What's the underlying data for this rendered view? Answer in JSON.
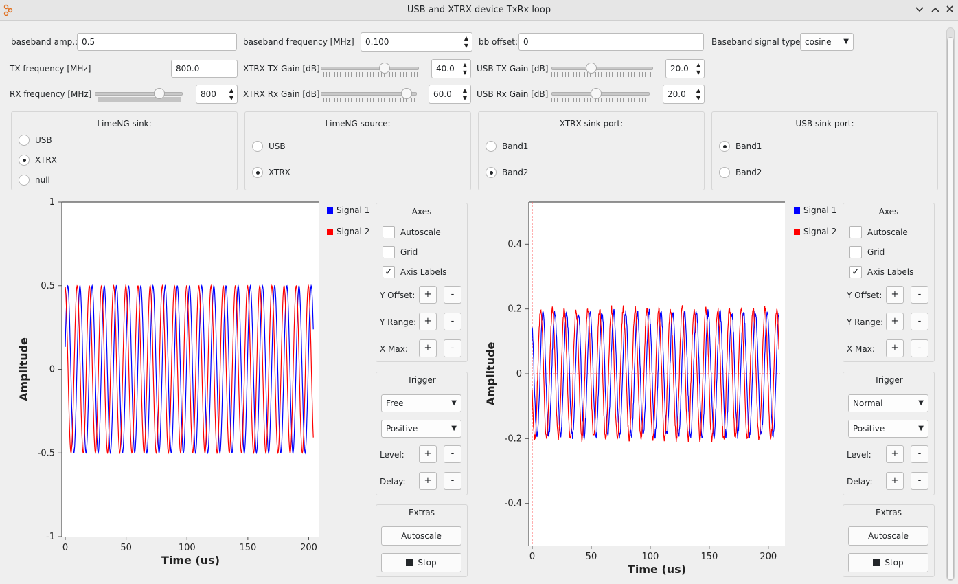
{
  "window": {
    "title": "USB and XTRX device TxRx loop",
    "minimize_icon": "chevron-down-icon",
    "maximize_icon": "chevron-up-icon",
    "close_icon": "close-icon"
  },
  "params": {
    "bb_amp_label": "baseband amp.:",
    "bb_amp_value": "0.5",
    "bb_freq_label": "baseband frequency [MHz]",
    "bb_freq_value": "0.100",
    "bb_offset_label": "bb offset:",
    "bb_offset_value": "0",
    "sig_type_label": "Baseband signal type:",
    "sig_type_value": "cosine",
    "tx_freq_label": "TX frequency [MHz]",
    "tx_freq_value": "800.0",
    "xtrx_tx_gain_label": "XTRX TX Gain [dB]",
    "xtrx_tx_gain_value": "40.0",
    "xtrx_tx_gain_level": 0.67,
    "usb_tx_gain_label": "USB TX Gain [dB]",
    "usb_tx_gain_value": "20.0",
    "usb_tx_gain_level": 0.38,
    "rx_freq_label": "RX frequency [MHz]",
    "rx_freq_value": "800",
    "rx_freq_level": 0.77,
    "xtrx_rx_gain_label": "XTRX Rx Gain [dB]",
    "xtrx_rx_gain_value": "60.0",
    "xtrx_rx_gain_level": 0.94,
    "usb_rx_gain_label": "USB Rx Gain [dB]",
    "usb_rx_gain_value": "20.0",
    "usb_rx_gain_level": 0.45
  },
  "groups": [
    {
      "title": "LimeNG sink:",
      "options": [
        "USB",
        "XTRX",
        "null"
      ],
      "selected": 1
    },
    {
      "title": "LimeNG source:",
      "options": [
        "USB",
        "XTRX"
      ],
      "selected": 1
    },
    {
      "title": "XTRX sink port:",
      "options": [
        "Band1",
        "Band2"
      ],
      "selected": 1
    },
    {
      "title": "USB sink port:",
      "options": [
        "Band1",
        "Band2"
      ],
      "selected": 0
    }
  ],
  "controls": {
    "axes_title": "Axes",
    "autoscale": "Autoscale",
    "grid": "Grid",
    "axis_labels": "Axis Labels",
    "y_offset": "Y Offset:",
    "y_range": "Y Range:",
    "x_max": "X Max:",
    "plus": "+",
    "minus": "-",
    "trigger_title": "Trigger",
    "level": "Level:",
    "delay": "Delay:",
    "extras_title": "Extras",
    "autoscale_btn": "Autoscale",
    "stop_btn": "Stop",
    "left_trigger_mode": "Free",
    "left_trigger_slope": "Positive",
    "right_trigger_mode": "Normal",
    "right_trigger_slope": "Positive",
    "axis_labels_checked": true,
    "autoscale_checked": false,
    "grid_checked": false
  },
  "chart_data": [
    {
      "type": "line",
      "xlabel": "Time (us)",
      "ylabel": "Amplitude",
      "xlim": [
        0,
        204.8
      ],
      "ylim": [
        -1,
        1
      ],
      "xticks": [
        0,
        50,
        100,
        150,
        200
      ],
      "yticks": [
        1,
        0.5,
        0,
        -0.5,
        -1
      ],
      "ytick_labels": [
        "1",
        "0.5",
        "0",
        "-0.5",
        "-1"
      ],
      "series": [
        {
          "name": "Signal 1",
          "color": "#0000ff",
          "amplitude": 0.5,
          "frequency_mhz": 0.1,
          "phase": -1.3,
          "noise": 0
        },
        {
          "name": "Signal 2",
          "color": "#ff0000",
          "amplitude": 0.5,
          "frequency_mhz": 0.1,
          "phase": 0.15,
          "noise": 0
        }
      ],
      "grid": false,
      "legend": "top-right"
    },
    {
      "type": "line",
      "xlabel": "Time (us)",
      "ylabel": "Amplitude",
      "xlim": [
        0,
        210
      ],
      "ylim": [
        -0.53,
        0.53
      ],
      "xticks": [
        0,
        50,
        100,
        150,
        200
      ],
      "yticks": [
        0.4,
        0.2,
        0,
        -0.2,
        -0.4
      ],
      "ytick_labels": [
        "0.4",
        "0.2",
        "0",
        "-0.2",
        "-0.4"
      ],
      "trigger_level": 0,
      "trigger_time": 0,
      "series": [
        {
          "name": "Signal 1",
          "color": "#0000ff",
          "amplitude": 0.19,
          "frequency_mhz": 0.1,
          "phase": 0.6,
          "noise": 0.012
        },
        {
          "name": "Signal 2",
          "color": "#ff0000",
          "amplitude": 0.2,
          "frequency_mhz": 0.1,
          "phase": 1.8,
          "noise": 0.012
        }
      ],
      "grid": false,
      "legend": "top-right"
    }
  ]
}
